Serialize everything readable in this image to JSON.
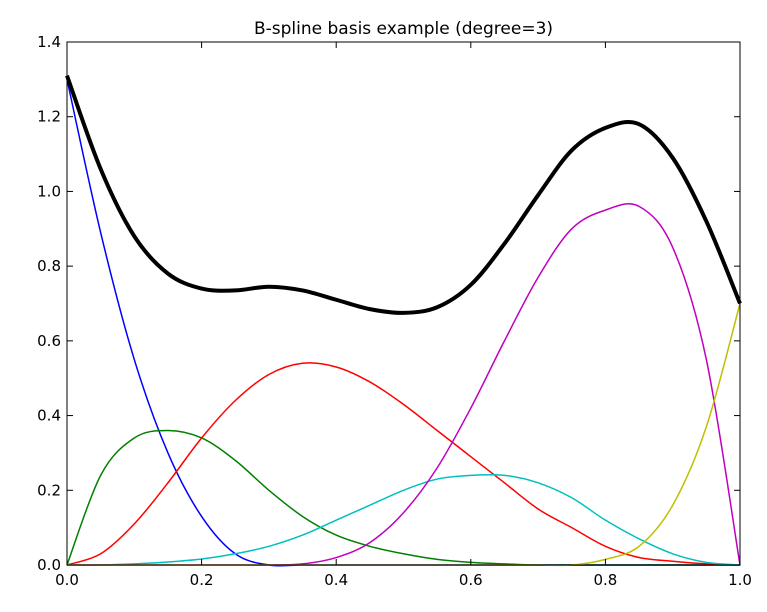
{
  "chart_data": {
    "type": "line",
    "title": "B-spline basis example (degree=3)",
    "xlabel": "",
    "ylabel": "",
    "xlim": [
      0,
      1
    ],
    "ylim": [
      0,
      1.4
    ],
    "xticks": [
      "0.0",
      "0.2",
      "0.4",
      "0.6",
      "0.8",
      "1.0"
    ],
    "yticks": [
      "0.0",
      "0.2",
      "0.4",
      "0.6",
      "0.8",
      "1.0",
      "1.2",
      "1.4"
    ],
    "grid": false,
    "legend": "none",
    "x": [
      0.0,
      0.05,
      0.1,
      0.15,
      0.2,
      0.25,
      0.3,
      0.35,
      0.4,
      0.45,
      0.5,
      0.55,
      0.6,
      0.65,
      0.7,
      0.75,
      0.8,
      0.85,
      0.9,
      0.95,
      1.0
    ],
    "series": [
      {
        "color": "#0000ff",
        "width": 1.5,
        "values": [
          1.3,
          0.89,
          0.55,
          0.3,
          0.13,
          0.03,
          0.0,
          0.0,
          0.0,
          0.0,
          0.0,
          0.0,
          0.0,
          0.0,
          0.0,
          0.0,
          0.0,
          0.0,
          0.0,
          0.0,
          0.0
        ]
      },
      {
        "color": "#008000",
        "width": 1.5,
        "values": [
          0.0,
          0.24,
          0.34,
          0.36,
          0.34,
          0.28,
          0.2,
          0.13,
          0.08,
          0.05,
          0.03,
          0.015,
          0.007,
          0.003,
          0.0,
          0.0,
          0.0,
          0.0,
          0.0,
          0.0,
          0.0
        ]
      },
      {
        "color": "#ff0000",
        "width": 1.5,
        "values": [
          0.0,
          0.03,
          0.11,
          0.22,
          0.34,
          0.44,
          0.51,
          0.54,
          0.53,
          0.49,
          0.43,
          0.36,
          0.29,
          0.22,
          0.15,
          0.1,
          0.05,
          0.02,
          0.01,
          0.003,
          0.0
        ]
      },
      {
        "color": "#00bfbf",
        "width": 1.5,
        "values": [
          0.0,
          0.0,
          0.003,
          0.008,
          0.016,
          0.03,
          0.05,
          0.08,
          0.12,
          0.16,
          0.2,
          0.23,
          0.24,
          0.24,
          0.22,
          0.18,
          0.12,
          0.07,
          0.03,
          0.007,
          0.0
        ]
      },
      {
        "color": "#bf00bf",
        "width": 1.5,
        "values": [
          0.0,
          0.0,
          0.0,
          0.0,
          0.0,
          0.0,
          0.0,
          0.003,
          0.02,
          0.06,
          0.14,
          0.26,
          0.42,
          0.6,
          0.77,
          0.9,
          0.95,
          0.96,
          0.85,
          0.55,
          0.0
        ]
      },
      {
        "color": "#bfbf00",
        "width": 1.5,
        "values": [
          0.0,
          0.0,
          0.0,
          0.0,
          0.0,
          0.0,
          0.0,
          0.0,
          0.0,
          0.0,
          0.0,
          0.0,
          0.0,
          0.0,
          0.0,
          0.0,
          0.015,
          0.05,
          0.16,
          0.37,
          0.7
        ]
      },
      {
        "color": "#000000",
        "width": 4,
        "values": [
          1.31,
          1.06,
          0.88,
          0.78,
          0.74,
          0.735,
          0.745,
          0.735,
          0.71,
          0.685,
          0.675,
          0.69,
          0.75,
          0.86,
          0.99,
          1.11,
          1.17,
          1.18,
          1.09,
          0.92,
          0.7
        ]
      }
    ]
  }
}
